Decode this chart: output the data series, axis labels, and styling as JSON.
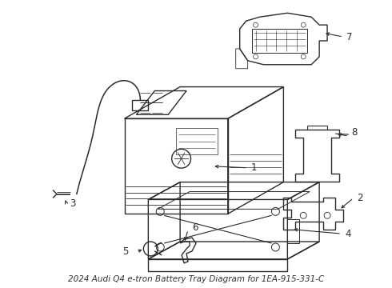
{
  "background_color": "#ffffff",
  "line_color": "#2a2a2a",
  "line_width": 1.0,
  "fig_width": 4.9,
  "fig_height": 3.6,
  "dpi": 100,
  "label_fontsize": 8.5,
  "title": "2024 Audi Q4 e-tron Battery Tray Diagram for 1EA-915-331-C",
  "title_fontsize": 7.5,
  "title_color": "#333333"
}
